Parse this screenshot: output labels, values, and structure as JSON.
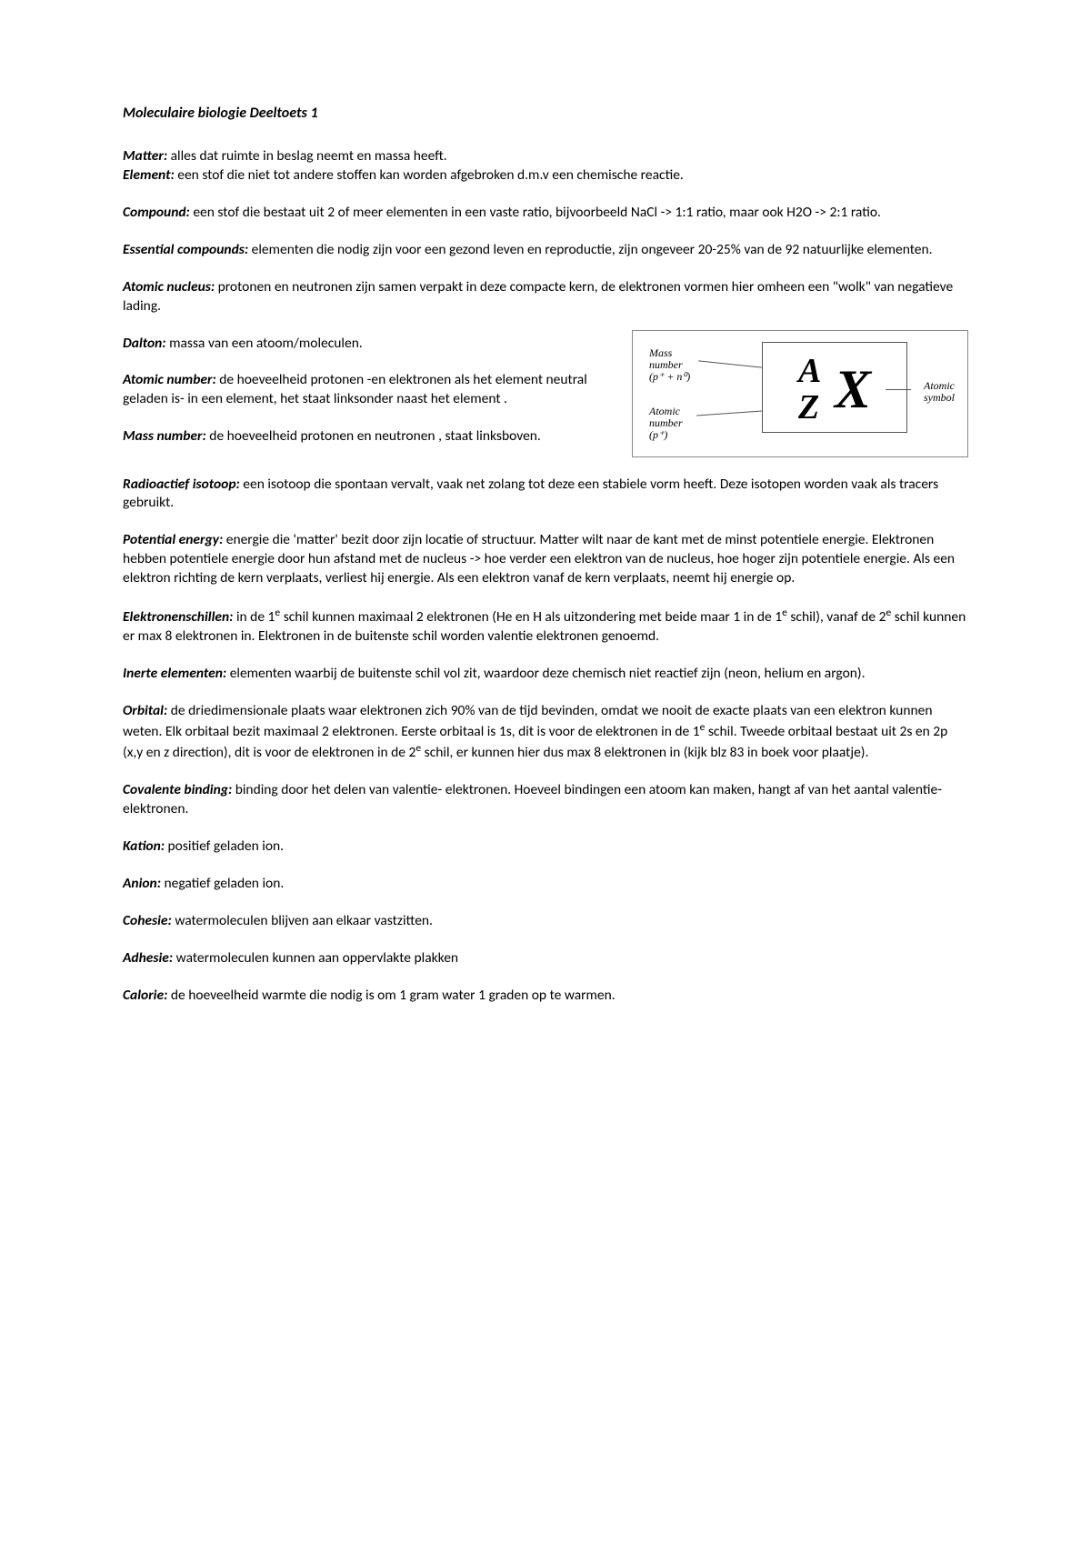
{
  "title": "Moleculaire biologie Deeltoets 1",
  "defs": {
    "matter": {
      "term": "Matter:",
      "text": " alles dat ruimte in beslag neemt en massa heeft."
    },
    "element": {
      "term": "Element:",
      "text": " een stof die niet tot andere stoffen kan worden afgebroken d.m.v een chemische reactie."
    },
    "compound": {
      "term": "Compound:",
      "text": " een stof die bestaat uit 2 of meer elementen in een vaste ratio, bijvoorbeeld NaCl -> 1:1 ratio, maar ook H2O -> 2:1 ratio."
    },
    "essential": {
      "term": "Essential compounds:",
      "text": " elementen die nodig zijn voor een gezond leven en reproductie, zijn ongeveer 20-25% van de 92 natuurlijke elementen."
    },
    "nucleus": {
      "term": "Atomic nucleus:",
      "text": " protonen en neutronen zijn samen verpakt in deze compacte kern, de elektronen vormen hier omheen een \"wolk\" van negatieve lading."
    },
    "dalton": {
      "term": "Dalton:",
      "text": " massa van een atoom/moleculen."
    },
    "atomicnumber": {
      "term": "Atomic number:",
      "text": " de hoeveelheid protonen -en elektronen als het element neutral geladen is- in een element, het staat linksonder naast het element ."
    },
    "massnumber": {
      "term": "Mass number:",
      "text": " de hoeveelheid protonen en neutronen , staat linksboven."
    },
    "radio": {
      "term": "Radioactief isotoop:",
      "text": " een isotoop die spontaan vervalt, vaak net zolang tot deze een stabiele vorm heeft. Deze isotopen worden vaak als tracers gebruikt."
    },
    "potential": {
      "term": "Potential energy:",
      "text": " energie die 'matter' bezit door zijn locatie of structuur. Matter wilt naar de kant met de minst potentiele energie. Elektronen hebben potentiele energie door hun afstand met de nucleus -> hoe verder een elektron van de nucleus, hoe hoger zijn potentiele energie. Als een elektron richting de kern verplaats, verliest hij energie. Als een elektron vanaf de kern verplaats, neemt hij energie op."
    },
    "schillen": {
      "term": "Elektronenschillen:",
      "text_a": " in de 1",
      "text_b": " schil kunnen maximaal 2 elektronen (He en H als uitzondering met beide maar 1 in de 1",
      "text_c": " schil), vanaf de 2",
      "text_d": " schil kunnen er max 8 elektronen in. Elektronen in de buitenste schil worden valentie elektronen genoemd.",
      "sup": "e"
    },
    "inerte": {
      "term": "Inerte elementen:",
      "text": " elementen waarbij de buitenste schil vol zit, waardoor deze chemisch niet reactief zijn (neon, helium en argon)."
    },
    "orbital": {
      "term": "Orbital:",
      "text_a": " de driedimensionale plaats waar elektronen zich 90% van de tijd bevinden, omdat we nooit de exacte plaats van een elektron kunnen weten. Elk orbitaal bezit maximaal 2 elektronen. Eerste orbitaal is 1s, dit is voor de elektronen in de 1",
      "text_b": " schil. Tweede orbitaal bestaat uit 2s en 2p (x,y en z direction), dit is voor de elektronen in de 2",
      "text_c": " schil, er kunnen hier dus max 8 elektronen in (kijk blz 83 in boek voor plaatje).",
      "sup": "e"
    },
    "covalente": {
      "term": "Covalente binding:",
      "text": " binding door het delen van valentie- elektronen. Hoeveel bindingen een atoom kan maken, hangt af van het aantal valentie-elektronen."
    },
    "kation": {
      "term": "Kation:",
      "text": " positief geladen ion."
    },
    "anion": {
      "term": "Anion:",
      "text": " negatief geladen ion."
    },
    "cohesie": {
      "term": "Cohesie:",
      "text": " watermoleculen blijven aan elkaar vastzitten."
    },
    "adhesie": {
      "term": "Adhesie: ",
      "text": "watermoleculen kunnen aan oppervlakte plakken"
    },
    "calorie": {
      "term": "Calorie:",
      "text": " de hoeveelheid warmte die nodig is om 1 gram water 1 graden op te warmen."
    }
  },
  "diagram": {
    "mass_label_1": "Mass",
    "mass_label_2": "number",
    "mass_label_3": "(p⁺ + n⁰)",
    "atomic_label_1": "Atomic",
    "atomic_label_2": "number",
    "atomic_label_3": "(p⁺)",
    "symbol_label_1": "Atomic",
    "symbol_label_2": "symbol",
    "A": "A",
    "Z": "Z",
    "X": "X"
  }
}
